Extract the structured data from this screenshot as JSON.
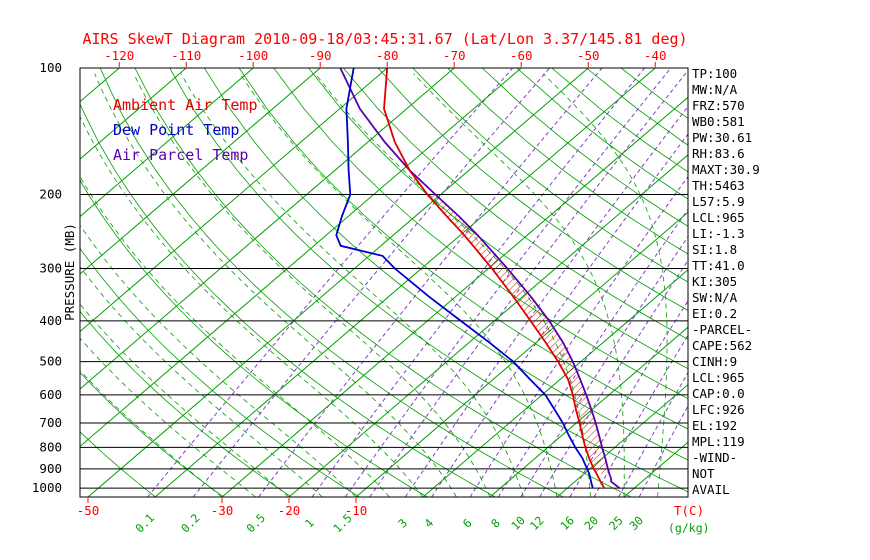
{
  "title": "AIRS SkewT Diagram 2010-09-18/03:45:31.67 (Lat/Lon 3.37/145.81 deg)",
  "colors": {
    "red": "#ff0000",
    "green": "#00a000",
    "black": "#000000",
    "isotherm": "#00a000",
    "dry_adiabat": "#00a000",
    "moist_adiabat": "#00a000",
    "mixing_ratio": "#8040c8",
    "temp_curve": "#e00000",
    "dewpoint_curve": "#0000cc",
    "parcel_curve": "#5a00b0",
    "hatch": "#cc2200"
  },
  "legend": [
    {
      "label": "Ambient Air Temp",
      "color": "#e00000"
    },
    {
      "label": "Dew Point Temp",
      "color": "#0000cc"
    },
    {
      "label": "Air Parcel Temp",
      "color": "#5a00b0"
    }
  ],
  "left_axis": {
    "label": "PRESSURE (MB)",
    "ticks": [
      100,
      200,
      300,
      400,
      500,
      600,
      700,
      800,
      900,
      1000
    ]
  },
  "top_axis": {
    "ticks": [
      -120,
      -110,
      -100,
      -90,
      -80,
      -70,
      -60,
      -50,
      -40
    ]
  },
  "bottom_axis": {
    "temp_ticks": [
      -50,
      -30,
      -20,
      -10
    ],
    "temp_unit": "T(C)",
    "mixing_ticks": [
      0.1,
      0.2,
      0.5,
      1,
      1.5,
      3,
      4,
      6,
      8,
      10,
      12,
      16,
      20,
      25,
      30
    ],
    "mixing_unit": "(g/kg)"
  },
  "stats": [
    "TP:100",
    "MW:N/A",
    "FRZ:570",
    "WB0:581",
    "PW:30.61",
    "RH:83.6",
    "MAXT:30.9",
    "TH:5463",
    "L57:5.9",
    "LCL:965",
    "LI:-1.3",
    "SI:1.8",
    "TT:41.0",
    "KI:305",
    "SW:N/A",
    "EI:0.2",
    "-PARCEL-",
    "CAPE:562",
    "CINH:9",
    "LCL:965",
    "CAP:0.0",
    "LFC:926",
    "EL:192",
    "MPL:119",
    "-WIND-",
    "NOT",
    "AVAIL"
  ],
  "chart_data": {
    "type": "line",
    "title": "AIRS SkewT Diagram 2010-09-18/03:45:31.67 (Lat/Lon 3.37/145.81 deg)",
    "x_axis": {
      "label": "T(C)",
      "mixing_label": "(g/kg)",
      "top_ticks_c": [
        -120,
        -110,
        -100,
        -90,
        -80,
        -70,
        -60,
        -50,
        -40
      ],
      "bottom_ticks_c": [
        -50,
        -30,
        -20,
        -10
      ],
      "skewed": true
    },
    "y_axis": {
      "label": "PRESSURE (MB)",
      "scale": "log",
      "range_mb": [
        100,
        1050
      ],
      "ticks_mb": [
        100,
        200,
        300,
        400,
        500,
        600,
        700,
        800,
        900,
        1000
      ]
    },
    "series": [
      {
        "id": "ambient-air-temp",
        "name": "Ambient Air Temp",
        "color": "#e00000",
        "units": [
          "mb",
          "C"
        ],
        "points": [
          [
            1000,
            25.5
          ],
          [
            975,
            24.3
          ],
          [
            950,
            23.1
          ],
          [
            925,
            21.9
          ],
          [
            900,
            20.6
          ],
          [
            850,
            18.1
          ],
          [
            800,
            15.6
          ],
          [
            750,
            13.1
          ],
          [
            700,
            10.5
          ],
          [
            650,
            7.6
          ],
          [
            600,
            4.6
          ],
          [
            550,
            1.1
          ],
          [
            500,
            -3.4
          ],
          [
            450,
            -8.6
          ],
          [
            400,
            -14.6
          ],
          [
            350,
            -21.4
          ],
          [
            300,
            -29.5
          ],
          [
            250,
            -39.4
          ],
          [
            225,
            -45.4
          ],
          [
            200,
            -52.0
          ],
          [
            175,
            -58.9
          ],
          [
            150,
            -66.0
          ],
          [
            125,
            -73.4
          ],
          [
            100,
            -80.0
          ]
        ]
      },
      {
        "id": "dew-point-temp",
        "name": "Dew Point Temp",
        "color": "#0000cc",
        "units": [
          "mb",
          "C"
        ],
        "points": [
          [
            1000,
            23.8
          ],
          [
            975,
            22.8
          ],
          [
            950,
            21.8
          ],
          [
            925,
            20.8
          ],
          [
            900,
            19.6
          ],
          [
            850,
            17.1
          ],
          [
            800,
            14.1
          ],
          [
            750,
            11.1
          ],
          [
            700,
            8.0
          ],
          [
            650,
            4.4
          ],
          [
            600,
            0.5
          ],
          [
            550,
            -4.6
          ],
          [
            500,
            -10.1
          ],
          [
            450,
            -17.0
          ],
          [
            400,
            -25.0
          ],
          [
            350,
            -34.0
          ],
          [
            300,
            -44.0
          ],
          [
            280,
            -48.0
          ],
          [
            265,
            -56.0
          ],
          [
            250,
            -58.5
          ],
          [
            225,
            -61.0
          ],
          [
            200,
            -63.5
          ],
          [
            175,
            -68.0
          ],
          [
            150,
            -73.0
          ],
          [
            125,
            -79.0
          ],
          [
            100,
            -85.0
          ]
        ]
      },
      {
        "id": "air-parcel-temp",
        "name": "Air Parcel Temp",
        "color": "#5a00b0",
        "units": [
          "mb",
          "C"
        ],
        "points": [
          [
            1000,
            27.8
          ],
          [
            965,
            25.4
          ],
          [
            950,
            24.9
          ],
          [
            925,
            23.8
          ],
          [
            900,
            22.7
          ],
          [
            850,
            20.5
          ],
          [
            800,
            18.1
          ],
          [
            750,
            15.6
          ],
          [
            700,
            12.9
          ],
          [
            650,
            9.9
          ],
          [
            600,
            6.6
          ],
          [
            550,
            2.9
          ],
          [
            500,
            -1.2
          ],
          [
            450,
            -6.0
          ],
          [
            400,
            -11.8
          ],
          [
            350,
            -18.8
          ],
          [
            300,
            -27.2
          ],
          [
            250,
            -37.4
          ],
          [
            225,
            -43.6
          ],
          [
            200,
            -50.8
          ],
          [
            175,
            -58.9
          ],
          [
            150,
            -67.5
          ],
          [
            125,
            -77.0
          ],
          [
            100,
            -87.0
          ]
        ]
      }
    ],
    "background": {
      "isotherms_c": {
        "min": -120,
        "max": 40,
        "step": 10
      },
      "dry_adiabats_k": {
        "min": 230,
        "max": 440,
        "step": 10
      },
      "moist_adiabats_c": {
        "min": -30,
        "max": 40,
        "step": 5
      },
      "mixing_ratio_gkg": [
        0.1,
        0.2,
        0.5,
        1,
        1.5,
        2,
        3,
        4,
        6,
        8,
        10,
        12,
        16,
        20,
        25,
        30
      ]
    },
    "cape_hatch_range_mb": [
      925,
      200
    ]
  }
}
